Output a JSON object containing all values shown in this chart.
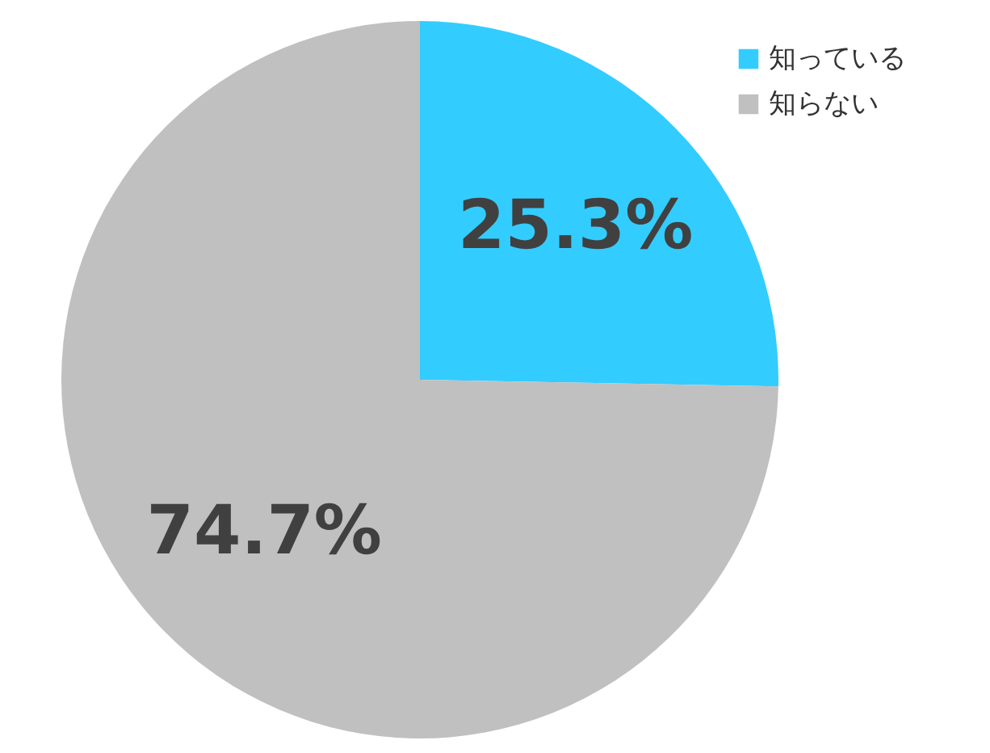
{
  "chart_data": {
    "type": "pie",
    "categories": [
      "知っている",
      "知らない"
    ],
    "values": [
      25.3,
      74.7
    ],
    "colors": [
      "#33ccff",
      "#c0c0c0"
    ],
    "value_labels": [
      "25.3%",
      "74.7%"
    ],
    "legend": "top right"
  }
}
